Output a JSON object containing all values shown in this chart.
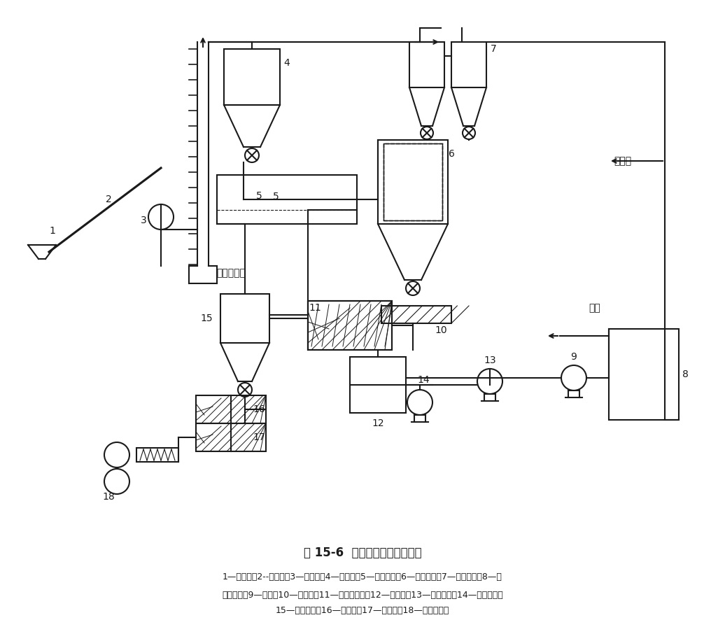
{
  "title": "图 15-6  厦门铁厂热压工艺流程",
  "caption_line1": "1—受煤坑；2--叉运机；3—粉碎机；4—粉煤仓；5—预热转筒；6—中间煤仓；7—小分离器；8—汽",
  "caption_line2": "水分离器；9—烟泵；10—给料机；11—旋风加热筒；12—燃烧炉；13—空气风机；14—煤气风机；",
  "caption_line3": "15—大分离器；16—准温筒；17—挤压机；18—对辊成型机",
  "bg_color": "#ffffff",
  "line_color": "#1a1a1a",
  "text_color": "#1a1a1a"
}
